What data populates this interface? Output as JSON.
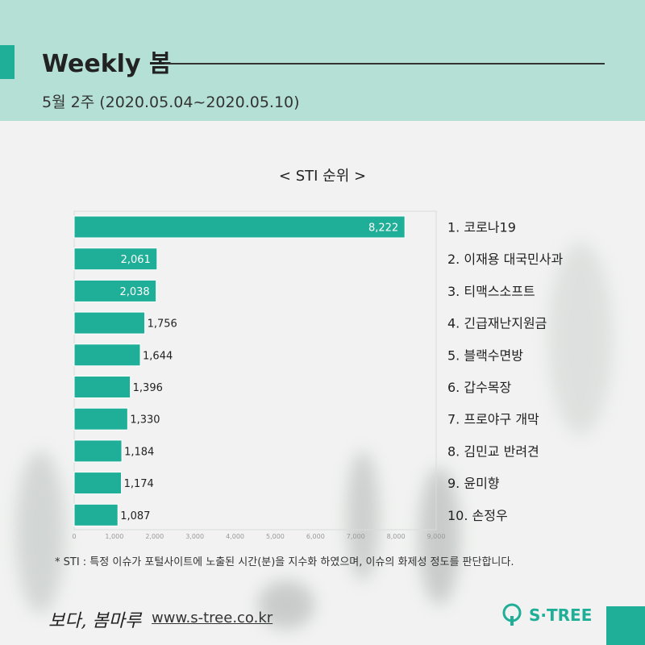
{
  "header": {
    "title": "Weekly 봄",
    "subtitle": "5월 2주 (2020.05.04~2020.05.10)"
  },
  "chart_data": {
    "type": "bar",
    "orientation": "horizontal",
    "title": "< STI 순위 >",
    "categories": [
      "1. 코로나19",
      "2. 이재용 대국민사과",
      "3. 티맥스소프트",
      "4. 긴급재난지원금",
      "5. 블랙수면방",
      "6. 갑수목장",
      "7. 프로야구 개막",
      "8. 김민교 반려견",
      "9. 윤미향",
      "10. 손정우"
    ],
    "values": [
      8222,
      2061,
      2038,
      1756,
      1644,
      1396,
      1330,
      1184,
      1174,
      1087
    ],
    "value_labels": [
      "8,222",
      "2,061",
      "2,038",
      "1,756",
      "1,644",
      "1,396",
      "1,330",
      "1,184",
      "1,174",
      "1,087"
    ],
    "ticks": [
      "0",
      "1,000",
      "2,000",
      "3,000",
      "4,000",
      "5,000",
      "6,000",
      "7,000",
      "8,000",
      "9,000"
    ],
    "xlim": [
      0,
      9000
    ],
    "bar_color": "#1fae97",
    "grid": false,
    "legend": "none"
  },
  "footnote": "* STI : 특정 이슈가 포털사이트에 노출된 시간(분)을 지수화 하였으며, 이슈의 화제성 정도를 판단합니다.",
  "footer": {
    "signature": "보다, 봄마루",
    "url": "www.s-tree.co.kr",
    "logo_text": "S·TREE"
  },
  "colors": {
    "accent": "#1fae97",
    "header_bg": "#b4e0d6"
  }
}
